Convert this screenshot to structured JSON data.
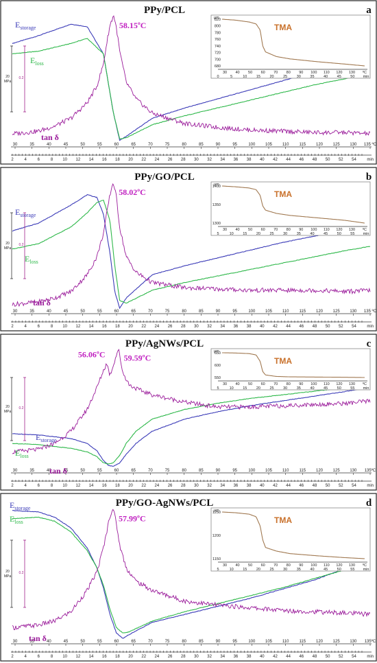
{
  "figure": {
    "colors": {
      "storage": "#3b3bb8",
      "loss": "#2eb84a",
      "tan_delta": "#9a1a9a",
      "tma": "#a07850",
      "peak_label": "#c020c0",
      "tma_label": "#c8702a"
    },
    "time_ticks": [
      "2",
      "4",
      "6",
      "8",
      "10",
      "12",
      "14",
      "16",
      "18",
      "20",
      "22",
      "24",
      "26",
      "28",
      "30",
      "32",
      "34",
      "36",
      "38",
      "40",
      "42",
      "44",
      "46",
      "48",
      "50",
      "52",
      "54"
    ],
    "time_unit": "min",
    "tma_unit": "µm",
    "scale_labels": {
      "e_scale": "20",
      "e_unit": "MPa",
      "tan_scale": "0.2"
    }
  },
  "chart_data": [
    {
      "type": "line",
      "title": "PPy/PCL",
      "panel_letter": "a",
      "peak_annotation": "58.15ºC",
      "legend": {
        "storage_main": "E",
        "storage_sub": "storage",
        "loss_main": "E",
        "loss_sub": "loss",
        "tan": "tan δ"
      },
      "temp_ticks": [
        "30",
        "35",
        "40",
        "45",
        "50",
        "55",
        "60",
        "65",
        "70",
        "75",
        "80",
        "85",
        "90",
        "95",
        "100",
        "105",
        "110",
        "115",
        "120",
        "125",
        "130",
        "135 ºC"
      ],
      "xlim": [
        27,
        137
      ],
      "series": [
        {
          "name": "Estorage",
          "x": [
            27,
            35,
            45,
            50,
            55,
            58,
            60,
            62,
            70,
            80,
            90,
            100,
            110,
            120,
            130,
            137
          ],
          "values": [
            0.78,
            0.84,
            0.93,
            0.91,
            0.7,
            0.25,
            0.03,
            0.06,
            0.2,
            0.28,
            0.35,
            0.42,
            0.49,
            0.56,
            0.63,
            0.68
          ]
        },
        {
          "name": "Eloss",
          "x": [
            27,
            35,
            45,
            50,
            55,
            58,
            60,
            62,
            70,
            80,
            90,
            100,
            110,
            120,
            130,
            137
          ],
          "values": [
            0.7,
            0.72,
            0.78,
            0.82,
            0.7,
            0.25,
            0.04,
            0.05,
            0.15,
            0.22,
            0.28,
            0.34,
            0.4,
            0.46,
            0.51,
            0.55
          ]
        },
        {
          "name": "tan δ",
          "x": [
            27,
            35,
            40,
            45,
            50,
            53,
            55,
            56,
            57,
            58.15,
            59,
            60,
            62,
            65,
            70,
            80,
            90,
            100,
            110,
            120,
            130,
            137
          ],
          "values": [
            0.08,
            0.1,
            0.14,
            0.2,
            0.32,
            0.45,
            0.62,
            0.78,
            0.92,
            1.0,
            0.9,
            0.72,
            0.48,
            0.35,
            0.24,
            0.16,
            0.13,
            0.11,
            0.1,
            0.09,
            0.09,
            0.08
          ]
        }
      ],
      "inset": {
        "label": "TMA",
        "yticks": [
          "820",
          "800",
          "780",
          "760",
          "740",
          "720",
          "700",
          "680"
        ],
        "xticks": [
          "30",
          "40",
          "50",
          "60",
          "70",
          "80",
          "90",
          "100",
          "110",
          "120",
          "130",
          "ºC"
        ],
        "tticks": [
          "0",
          "5",
          "10",
          "15",
          "20",
          "25",
          "30",
          "35",
          "40",
          "45",
          "50",
          "min"
        ],
        "x": [
          30,
          40,
          50,
          55,
          58,
          60,
          62,
          70,
          80,
          100,
          120,
          135
        ],
        "values": [
          818,
          816,
          812,
          808,
          795,
          760,
          748,
          738,
          733,
          727,
          722,
          718
        ]
      }
    },
    {
      "type": "line",
      "title": "PPy/GO/PCL",
      "panel_letter": "b",
      "peak_annotation": "58.02ºC",
      "legend": {
        "storage_main": "E",
        "storage_sub": "storage",
        "loss_main": "E",
        "loss_sub": "loss",
        "tan": "tan δ"
      },
      "temp_ticks": [
        "30",
        "35",
        "40",
        "45",
        "50",
        "55",
        "60",
        "65",
        "70",
        "75",
        "80",
        "85",
        "90",
        "95",
        "100",
        "105",
        "110",
        "115",
        "120",
        "125",
        "130",
        "135 ºC"
      ],
      "xlim": [
        27,
        137
      ],
      "series": [
        {
          "name": "Estorage",
          "x": [
            27,
            35,
            45,
            50,
            53,
            55,
            57,
            58.5,
            60,
            62,
            70,
            80,
            90,
            100,
            110,
            120,
            130,
            137
          ],
          "values": [
            0.62,
            0.68,
            0.82,
            0.9,
            0.88,
            0.75,
            0.45,
            0.15,
            0.02,
            0.1,
            0.28,
            0.35,
            0.41,
            0.47,
            0.53,
            0.58,
            0.63,
            0.66
          ]
        },
        {
          "name": "Eloss",
          "x": [
            27,
            35,
            45,
            50,
            53,
            55,
            57,
            58.5,
            60,
            62,
            70,
            80,
            90,
            100,
            110,
            120,
            130,
            137
          ],
          "values": [
            0.48,
            0.52,
            0.65,
            0.76,
            0.84,
            0.86,
            0.7,
            0.35,
            0.08,
            0.06,
            0.16,
            0.22,
            0.27,
            0.32,
            0.37,
            0.42,
            0.47,
            0.5
          ]
        },
        {
          "name": "tan δ",
          "x": [
            27,
            35,
            40,
            45,
            50,
            53,
            55,
            56,
            57,
            58.02,
            59,
            60,
            62,
            65,
            70,
            80,
            90,
            100,
            110,
            120,
            130,
            137
          ],
          "values": [
            0.05,
            0.07,
            0.1,
            0.15,
            0.28,
            0.42,
            0.6,
            0.75,
            0.9,
            1.0,
            0.88,
            0.65,
            0.42,
            0.3,
            0.22,
            0.18,
            0.17,
            0.16,
            0.16,
            0.16,
            0.15,
            0.16
          ]
        }
      ],
      "inset": {
        "label": "TMA",
        "yticks": [
          "1400",
          "1350",
          "1300"
        ],
        "xticks": [
          "30",
          "40",
          "50",
          "60",
          "70",
          "80",
          "90",
          "100",
          "110",
          "120",
          "130",
          "ºC"
        ],
        "tticks": [
          "5",
          "10",
          "15",
          "20",
          "25",
          "30",
          "35",
          "40",
          "45",
          "50",
          "55",
          "min"
        ],
        "x": [
          30,
          40,
          50,
          55,
          58,
          60,
          62,
          70,
          80,
          100,
          120,
          135
        ],
        "values": [
          1395,
          1393,
          1390,
          1386,
          1372,
          1345,
          1335,
          1327,
          1322,
          1316,
          1310,
          1303
        ]
      }
    },
    {
      "type": "line",
      "title": "PPy/AgNWs/PCL",
      "panel_letter": "c",
      "peak_annotation": "59.59ºC",
      "peak_annotation_2": "56.06ºC",
      "legend": {
        "storage_main": "E",
        "storage_sub": "storage",
        "loss_main": "E",
        "loss_sub": "loss",
        "tan": "tan δ"
      },
      "temp_ticks": [
        "30",
        "35",
        "40",
        "45",
        "50",
        "55",
        "60",
        "65",
        "70",
        "75",
        "80",
        "85",
        "90",
        "95",
        "100",
        "105",
        "110",
        "115",
        "120",
        "125",
        "130",
        "135ºC"
      ],
      "xlim": [
        27,
        137
      ],
      "series": [
        {
          "name": "Estorage",
          "x": [
            27,
            35,
            45,
            50,
            53,
            55,
            56.5,
            58,
            60,
            62,
            65,
            70,
            80,
            90,
            100,
            110,
            120,
            130,
            137
          ],
          "values": [
            0.3,
            0.29,
            0.26,
            0.22,
            0.16,
            0.08,
            0.04,
            0.03,
            0.06,
            0.13,
            0.22,
            0.32,
            0.42,
            0.48,
            0.53,
            0.57,
            0.61,
            0.65,
            0.68
          ]
        },
        {
          "name": "Eloss",
          "x": [
            27,
            35,
            45,
            50,
            53,
            55,
            56.5,
            58,
            60,
            62,
            65,
            70,
            80,
            90,
            100,
            110,
            120,
            130,
            137
          ],
          "values": [
            0.22,
            0.21,
            0.18,
            0.15,
            0.11,
            0.06,
            0.05,
            0.06,
            0.12,
            0.22,
            0.32,
            0.42,
            0.5,
            0.55,
            0.59,
            0.62,
            0.65,
            0.68,
            0.7
          ]
        },
        {
          "name": "tan δ",
          "x": [
            27,
            35,
            40,
            45,
            50,
            53,
            55,
            56.06,
            57,
            58,
            59.59,
            61,
            63,
            66,
            70,
            80,
            90,
            100,
            110,
            120,
            130,
            137
          ],
          "values": [
            0.15,
            0.17,
            0.22,
            0.32,
            0.5,
            0.68,
            0.82,
            0.88,
            0.78,
            0.86,
            1.0,
            0.8,
            0.7,
            0.66,
            0.62,
            0.56,
            0.52,
            0.52,
            0.53,
            0.54,
            0.55,
            0.57
          ]
        }
      ],
      "inset": {
        "label": "TMA",
        "yticks": [
          "650",
          "600",
          "550"
        ],
        "xticks": [
          "30",
          "40",
          "50",
          "60",
          "70",
          "80",
          "90",
          "100",
          "110",
          "120",
          "130",
          "ºC"
        ],
        "tticks": [
          "5",
          "10",
          "15",
          "20",
          "25",
          "30",
          "35",
          "40",
          "45",
          "50",
          "55",
          "min"
        ],
        "x": [
          30,
          40,
          50,
          55,
          58,
          60,
          62,
          70,
          80,
          100,
          120,
          135
        ],
        "values": [
          660,
          659,
          656,
          650,
          620,
          570,
          555,
          548,
          546,
          545,
          544,
          543
        ]
      }
    },
    {
      "type": "line",
      "title": "PPy/GO-AgNWs/PCL",
      "panel_letter": "d",
      "peak_annotation": "57.99ºC",
      "legend": {
        "storage_main": "E",
        "storage_sub": "storage",
        "loss_main": "E",
        "loss_sub": "loss",
        "tan": "tan δ"
      },
      "temp_ticks": [
        "30",
        "35",
        "40",
        "45",
        "50",
        "55",
        "60",
        "65",
        "70",
        "75",
        "80",
        "85",
        "90",
        "95",
        "100",
        "105",
        "110",
        "115",
        "120",
        "125",
        "130",
        "135ºC"
      ],
      "xlim": [
        27,
        137
      ],
      "series": [
        {
          "name": "Estorage",
          "x": [
            27,
            35,
            40,
            45,
            50,
            53,
            55,
            57,
            59,
            61,
            63,
            70,
            80,
            90,
            100,
            110,
            120,
            130,
            137
          ],
          "values": [
            0.98,
            0.97,
            0.93,
            0.85,
            0.7,
            0.55,
            0.4,
            0.2,
            0.06,
            0.02,
            0.05,
            0.14,
            0.2,
            0.26,
            0.32,
            0.39,
            0.46,
            0.55,
            0.62
          ]
        },
        {
          "name": "Eloss",
          "x": [
            27,
            35,
            40,
            45,
            50,
            53,
            55,
            57,
            59,
            61,
            63,
            70,
            80,
            90,
            100,
            110,
            120,
            130,
            137
          ],
          "values": [
            0.92,
            0.93,
            0.9,
            0.82,
            0.68,
            0.55,
            0.42,
            0.24,
            0.1,
            0.06,
            0.07,
            0.15,
            0.22,
            0.28,
            0.34,
            0.4,
            0.47,
            0.54,
            0.6
          ]
        },
        {
          "name": "tan δ",
          "x": [
            27,
            35,
            40,
            45,
            50,
            53,
            55,
            56,
            57,
            57.99,
            59,
            60,
            62,
            65,
            70,
            80,
            90,
            100,
            110,
            120,
            130,
            137
          ],
          "values": [
            0.1,
            0.12,
            0.15,
            0.22,
            0.38,
            0.52,
            0.7,
            0.82,
            0.94,
            1.0,
            0.88,
            0.72,
            0.55,
            0.45,
            0.38,
            0.3,
            0.27,
            0.25,
            0.23,
            0.22,
            0.21,
            0.2
          ]
        }
      ],
      "inset": {
        "label": "TMA",
        "yticks": [
          "1250",
          "1200",
          "1150"
        ],
        "xticks": [
          "30",
          "40",
          "50",
          "60",
          "70",
          "80",
          "90",
          "100",
          "110",
          "120",
          "130",
          "ºC"
        ],
        "tticks": [
          "5",
          "10",
          "15",
          "20",
          "25",
          "30",
          "35",
          "40",
          "45",
          "50",
          "55",
          "min"
        ],
        "x": [
          30,
          40,
          50,
          55,
          58,
          60,
          62,
          70,
          80,
          100,
          120,
          135
        ],
        "values": [
          1278,
          1276,
          1272,
          1265,
          1240,
          1200,
          1180,
          1170,
          1163,
          1157,
          1152,
          1149
        ]
      }
    }
  ]
}
